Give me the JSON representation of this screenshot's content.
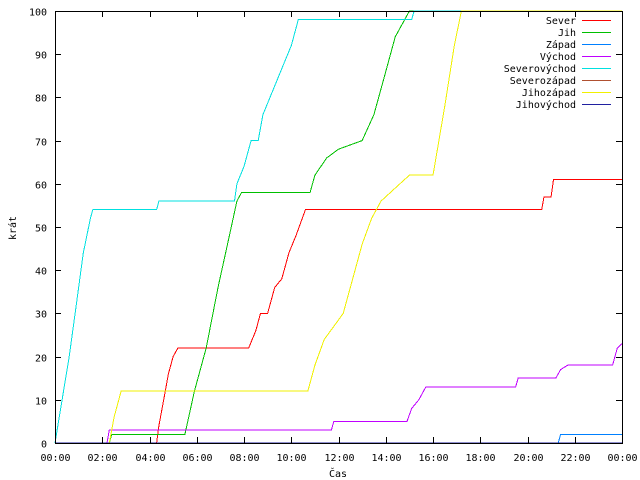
{
  "chart_data": {
    "type": "line",
    "xlabel": "Čas",
    "ylabel": "krát",
    "xlim": [
      0,
      24
    ],
    "ylim": [
      0,
      100
    ],
    "x_ticks": [
      "00:00",
      "02:00",
      "04:00",
      "06:00",
      "08:00",
      "10:00",
      "12:00",
      "14:00",
      "16:00",
      "18:00",
      "20:00",
      "22:00",
      "00:00"
    ],
    "y_ticks": [
      "0",
      "10",
      "20",
      "30",
      "40",
      "50",
      "60",
      "70",
      "80",
      "90",
      "100"
    ],
    "grid": false,
    "legend_position": "top-right",
    "x_unit": "hours",
    "series": [
      {
        "name": "Sever",
        "color": "#ff0000",
        "points": [
          [
            0,
            0
          ],
          [
            4.3,
            0
          ],
          [
            4.4,
            4
          ],
          [
            4.6,
            10
          ],
          [
            4.8,
            16
          ],
          [
            5.0,
            20
          ],
          [
            5.2,
            22
          ],
          [
            8.2,
            22
          ],
          [
            8.5,
            26
          ],
          [
            8.7,
            30
          ],
          [
            9.0,
            30
          ],
          [
            9.3,
            36
          ],
          [
            9.6,
            38
          ],
          [
            9.9,
            44
          ],
          [
            10.2,
            48
          ],
          [
            10.6,
            54
          ],
          [
            20.6,
            54
          ],
          [
            20.7,
            57
          ],
          [
            21.0,
            57
          ],
          [
            21.1,
            61
          ],
          [
            24,
            61
          ]
        ]
      },
      {
        "name": "Jih",
        "color": "#00c000",
        "points": [
          [
            0,
            0
          ],
          [
            2.3,
            0
          ],
          [
            2.4,
            2
          ],
          [
            5.5,
            2
          ],
          [
            5.9,
            12
          ],
          [
            6.4,
            22
          ],
          [
            6.9,
            36
          ],
          [
            7.3,
            46
          ],
          [
            7.7,
            56
          ],
          [
            7.9,
            58
          ],
          [
            10.8,
            58
          ],
          [
            11.0,
            62
          ],
          [
            11.5,
            66
          ],
          [
            12.0,
            68
          ],
          [
            13.0,
            70
          ],
          [
            13.5,
            76
          ],
          [
            14.0,
            86
          ],
          [
            14.4,
            94
          ],
          [
            14.8,
            98
          ],
          [
            15.0,
            100
          ],
          [
            24,
            100
          ]
        ]
      },
      {
        "name": "Západ",
        "color": "#0080ff",
        "points": [
          [
            0,
            0
          ],
          [
            21.3,
            0
          ],
          [
            21.4,
            2
          ],
          [
            24,
            2
          ]
        ]
      },
      {
        "name": "Východ",
        "color": "#c000ff",
        "points": [
          [
            0,
            0
          ],
          [
            2.2,
            0
          ],
          [
            2.3,
            3
          ],
          [
            11.7,
            3
          ],
          [
            11.8,
            5
          ],
          [
            14.9,
            5
          ],
          [
            15.1,
            8
          ],
          [
            15.4,
            10
          ],
          [
            15.7,
            13
          ],
          [
            19.5,
            13
          ],
          [
            19.6,
            15
          ],
          [
            21.2,
            15
          ],
          [
            21.4,
            17
          ],
          [
            21.7,
            18
          ],
          [
            23.6,
            18
          ],
          [
            23.8,
            22
          ],
          [
            24,
            23
          ]
        ]
      },
      {
        "name": "Severovýchod",
        "color": "#00e0e0",
        "points": [
          [
            0,
            0
          ],
          [
            0.3,
            10
          ],
          [
            0.6,
            20
          ],
          [
            0.9,
            32
          ],
          [
            1.2,
            44
          ],
          [
            1.5,
            52
          ],
          [
            1.6,
            54
          ],
          [
            4.3,
            54
          ],
          [
            4.4,
            56
          ],
          [
            7.6,
            56
          ],
          [
            7.7,
            60
          ],
          [
            8.0,
            64
          ],
          [
            8.3,
            70
          ],
          [
            8.6,
            70
          ],
          [
            8.8,
            76
          ],
          [
            9.1,
            80
          ],
          [
            9.4,
            84
          ],
          [
            9.7,
            88
          ],
          [
            10.0,
            92
          ],
          [
            10.3,
            98
          ],
          [
            15.1,
            98
          ],
          [
            15.2,
            100
          ],
          [
            24,
            100
          ]
        ]
      },
      {
        "name": "Severozápad",
        "color": "#b05030",
        "points": [
          [
            0,
            0
          ],
          [
            24,
            0
          ]
        ]
      },
      {
        "name": "Jihozápad",
        "color": "#f0f000",
        "points": [
          [
            0,
            0
          ],
          [
            2.3,
            0
          ],
          [
            2.5,
            6
          ],
          [
            2.8,
            12
          ],
          [
            10.7,
            12
          ],
          [
            11.0,
            18
          ],
          [
            11.4,
            24
          ],
          [
            11.8,
            27
          ],
          [
            12.2,
            30
          ],
          [
            12.6,
            38
          ],
          [
            13.0,
            46
          ],
          [
            13.4,
            52
          ],
          [
            13.8,
            56
          ],
          [
            14.2,
            58
          ],
          [
            14.6,
            60
          ],
          [
            15.0,
            62
          ],
          [
            16.0,
            62
          ],
          [
            16.5,
            78
          ],
          [
            16.9,
            92
          ],
          [
            17.2,
            100
          ],
          [
            24,
            100
          ]
        ]
      },
      {
        "name": "Jihovýchod",
        "color": "#2020a0",
        "points": [
          [
            0,
            0
          ],
          [
            24,
            0
          ]
        ]
      }
    ]
  }
}
